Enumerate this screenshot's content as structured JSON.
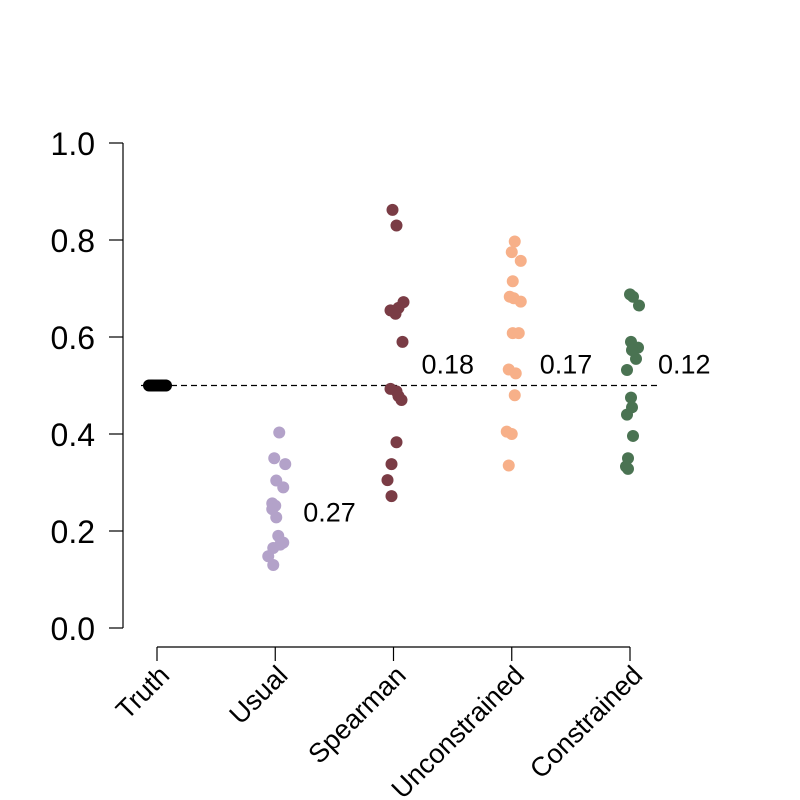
{
  "chart_data": {
    "type": "scatter",
    "title": "",
    "xlabel": "",
    "ylabel": "",
    "ylim": [
      0,
      1
    ],
    "yticks": [
      "0.0",
      "0.2",
      "0.4",
      "0.6",
      "0.8",
      "1.0"
    ],
    "reference_line": {
      "y": 0.5,
      "style": "dashed",
      "color": "#000000"
    },
    "categories": [
      "Truth",
      "Usual",
      "Spearman",
      "Unconstrained",
      "Constrained"
    ],
    "series": [
      {
        "category": "Truth",
        "color": "#000000",
        "annotation": "",
        "points": [
          [
            -0.08,
            0.5
          ],
          [
            -0.06,
            0.5
          ],
          [
            -0.04,
            0.5
          ],
          [
            -0.02,
            0.5
          ],
          [
            0.0,
            0.5
          ],
          [
            0.02,
            0.5
          ],
          [
            0.04,
            0.5
          ],
          [
            0.06,
            0.5
          ],
          [
            0.08,
            0.5
          ],
          [
            -0.05,
            0.5
          ],
          [
            0.05,
            0.5
          ],
          [
            0.09,
            0.5
          ]
        ]
      },
      {
        "category": "Usual",
        "color": "#b3a2c9",
        "annotation": "0.27",
        "points": [
          [
            0.04,
            0.403
          ],
          [
            -0.01,
            0.35
          ],
          [
            0.1,
            0.338
          ],
          [
            0.01,
            0.304
          ],
          [
            0.08,
            0.29
          ],
          [
            -0.03,
            0.257
          ],
          [
            0.0,
            0.252
          ],
          [
            -0.03,
            0.245
          ],
          [
            0.01,
            0.228
          ],
          [
            0.03,
            0.19
          ],
          [
            0.08,
            0.176
          ],
          [
            0.05,
            0.172
          ],
          [
            -0.02,
            0.165
          ],
          [
            -0.07,
            0.148
          ],
          [
            -0.02,
            0.13
          ]
        ]
      },
      {
        "category": "Spearman",
        "color": "#7a3c45",
        "annotation": "0.18",
        "points": [
          [
            -0.01,
            0.862
          ],
          [
            0.03,
            0.83
          ],
          [
            0.1,
            0.672
          ],
          [
            0.05,
            0.66
          ],
          [
            -0.03,
            0.655
          ],
          [
            0.02,
            0.648
          ],
          [
            0.09,
            0.59
          ],
          [
            -0.03,
            0.493
          ],
          [
            0.03,
            0.488
          ],
          [
            0.05,
            0.478
          ],
          [
            0.08,
            0.47
          ],
          [
            0.03,
            0.383
          ],
          [
            -0.02,
            0.338
          ],
          [
            -0.06,
            0.305
          ],
          [
            -0.02,
            0.272
          ]
        ]
      },
      {
        "category": "Unconstrained",
        "color": "#f7b089",
        "annotation": "0.17",
        "points": [
          [
            0.03,
            0.797
          ],
          [
            0.0,
            0.775
          ],
          [
            0.09,
            0.757
          ],
          [
            0.01,
            0.715
          ],
          [
            -0.02,
            0.683
          ],
          [
            0.02,
            0.68
          ],
          [
            0.09,
            0.673
          ],
          [
            0.01,
            0.608
          ],
          [
            0.07,
            0.608
          ],
          [
            -0.03,
            0.533
          ],
          [
            0.04,
            0.525
          ],
          [
            0.03,
            0.48
          ],
          [
            -0.05,
            0.405
          ],
          [
            0.0,
            0.4
          ],
          [
            -0.03,
            0.335
          ]
        ]
      },
      {
        "category": "Constrained",
        "color": "#4a7352",
        "annotation": "0.12",
        "points": [
          [
            0.0,
            0.688
          ],
          [
            0.03,
            0.683
          ],
          [
            0.09,
            0.665
          ],
          [
            0.01,
            0.59
          ],
          [
            0.08,
            0.578
          ],
          [
            0.02,
            0.573
          ],
          [
            0.06,
            0.555
          ],
          [
            -0.03,
            0.532
          ],
          [
            0.01,
            0.475
          ],
          [
            0.02,
            0.455
          ],
          [
            -0.03,
            0.44
          ],
          [
            0.03,
            0.396
          ],
          [
            -0.02,
            0.35
          ],
          [
            -0.04,
            0.333
          ],
          [
            -0.02,
            0.328
          ]
        ]
      }
    ],
    "grid": false,
    "legend": "none"
  }
}
